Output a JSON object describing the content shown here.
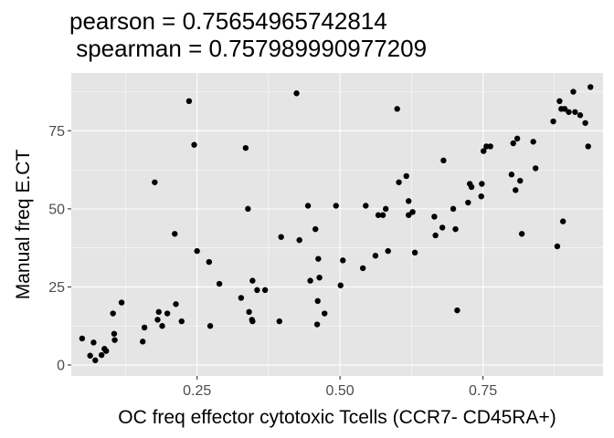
{
  "title_line1": "pearson = 0.75654965742814",
  "title_line2": " spearman = 0.757989990977209",
  "chart_data": {
    "type": "scatter",
    "title": "pearson = 0.75654965742814\n spearman = 0.757989990977209",
    "xlabel": "OC freq effector cytotoxic Tcells  (CCR7-  CD45RA+)",
    "ylabel": "Manual freq E.CT",
    "xlim": [
      0.03,
      0.96
    ],
    "ylim": [
      -3.5,
      93.5
    ],
    "x_ticks": [
      0.25,
      0.5,
      0.75
    ],
    "x_tick_labels": [
      "0.25",
      "0.50",
      "0.75"
    ],
    "y_ticks": [
      0,
      25,
      50,
      75
    ],
    "y_tick_labels": [
      "0",
      "25",
      "50",
      "75"
    ],
    "grid": true,
    "background": "#e5e5e5",
    "grid_color": "#ffffff",
    "point_color": "#000000",
    "points": [
      [
        0.049,
        8.5
      ],
      [
        0.063,
        3.0
      ],
      [
        0.069,
        7.2
      ],
      [
        0.072,
        1.5
      ],
      [
        0.083,
        3.2
      ],
      [
        0.088,
        5.2
      ],
      [
        0.091,
        4.5
      ],
      [
        0.103,
        16.5
      ],
      [
        0.105,
        10.0
      ],
      [
        0.106,
        8.0
      ],
      [
        0.118,
        20.0
      ],
      [
        0.155,
        7.5
      ],
      [
        0.158,
        12.0
      ],
      [
        0.176,
        58.5
      ],
      [
        0.181,
        14.5
      ],
      [
        0.183,
        17.0
      ],
      [
        0.189,
        12.5
      ],
      [
        0.198,
        16.5
      ],
      [
        0.211,
        42.0
      ],
      [
        0.213,
        19.5
      ],
      [
        0.223,
        14.0
      ],
      [
        0.236,
        84.5
      ],
      [
        0.245,
        70.5
      ],
      [
        0.25,
        36.5
      ],
      [
        0.271,
        33.0
      ],
      [
        0.273,
        12.5
      ],
      [
        0.289,
        26.0
      ],
      [
        0.327,
        21.5
      ],
      [
        0.335,
        69.5
      ],
      [
        0.339,
        50.0
      ],
      [
        0.341,
        17.0
      ],
      [
        0.346,
        14.5
      ],
      [
        0.347,
        14.0
      ],
      [
        0.347,
        27.0
      ],
      [
        0.355,
        24.0
      ],
      [
        0.369,
        24.0
      ],
      [
        0.394,
        14.0
      ],
      [
        0.397,
        41.0
      ],
      [
        0.424,
        87.0
      ],
      [
        0.429,
        40.0
      ],
      [
        0.444,
        51.0
      ],
      [
        0.448,
        27.0
      ],
      [
        0.457,
        43.5
      ],
      [
        0.46,
        13.0
      ],
      [
        0.461,
        20.5
      ],
      [
        0.462,
        34.0
      ],
      [
        0.464,
        28.0
      ],
      [
        0.473,
        16.5
      ],
      [
        0.493,
        51.0
      ],
      [
        0.501,
        25.5
      ],
      [
        0.505,
        33.5
      ],
      [
        0.54,
        31.0
      ],
      [
        0.545,
        51.0
      ],
      [
        0.562,
        35.0
      ],
      [
        0.567,
        48.0
      ],
      [
        0.575,
        48.0
      ],
      [
        0.58,
        50.0
      ],
      [
        0.584,
        36.5
      ],
      [
        0.6,
        82.0
      ],
      [
        0.603,
        58.5
      ],
      [
        0.616,
        60.5
      ],
      [
        0.62,
        52.5
      ],
      [
        0.62,
        48.0
      ],
      [
        0.627,
        49.0
      ],
      [
        0.631,
        36.0
      ],
      [
        0.665,
        47.5
      ],
      [
        0.667,
        41.5
      ],
      [
        0.679,
        44.0
      ],
      [
        0.681,
        65.5
      ],
      [
        0.698,
        50.0
      ],
      [
        0.702,
        43.5
      ],
      [
        0.705,
        17.5
      ],
      [
        0.724,
        52.0
      ],
      [
        0.727,
        58.0
      ],
      [
        0.73,
        57.0
      ],
      [
        0.747,
        54.0
      ],
      [
        0.748,
        58.0
      ],
      [
        0.751,
        68.5
      ],
      [
        0.756,
        70.0
      ],
      [
        0.763,
        70.0
      ],
      [
        0.8,
        61.0
      ],
      [
        0.803,
        71.0
      ],
      [
        0.807,
        56.0
      ],
      [
        0.81,
        72.5
      ],
      [
        0.815,
        59.0
      ],
      [
        0.818,
        42.0
      ],
      [
        0.838,
        71.5
      ],
      [
        0.842,
        63.0
      ],
      [
        0.873,
        78.0
      ],
      [
        0.88,
        38.0
      ],
      [
        0.884,
        84.5
      ],
      [
        0.887,
        82.0
      ],
      [
        0.89,
        46.0
      ],
      [
        0.893,
        82.0
      ],
      [
        0.9,
        81.0
      ],
      [
        0.908,
        87.5
      ],
      [
        0.911,
        81.0
      ],
      [
        0.92,
        80.0
      ],
      [
        0.929,
        77.5
      ],
      [
        0.934,
        70.0
      ],
      [
        0.938,
        89.0
      ]
    ]
  }
}
